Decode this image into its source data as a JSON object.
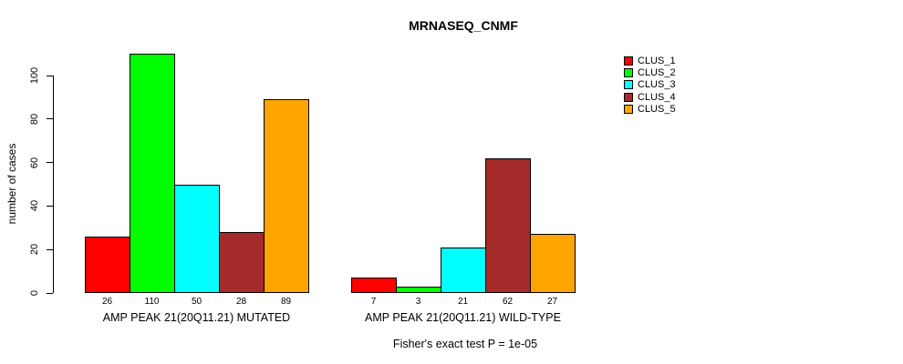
{
  "chart_data": {
    "type": "bar",
    "title": "MRNASEQ_CNMF",
    "ylabel": "number of cases",
    "xlabel": "",
    "ylim": [
      0,
      100
    ],
    "yticks": [
      0,
      20,
      40,
      60,
      80,
      100
    ],
    "grid": false,
    "legend_position": "right",
    "legend": [
      {
        "label": "CLUS_1",
        "color": "#FF0000"
      },
      {
        "label": "CLUS_2",
        "color": "#00FF00"
      },
      {
        "label": "CLUS_3",
        "color": "#00FFFF"
      },
      {
        "label": "CLUS_4",
        "color": "#A52A2A"
      },
      {
        "label": "CLUS_5",
        "color": "#FFA500"
      }
    ],
    "groups": [
      {
        "label": "AMP PEAK 21(20Q11.21) MUTATED",
        "categories": [
          "CLUS_1",
          "CLUS_2",
          "CLUS_3",
          "CLUS_4",
          "CLUS_5"
        ],
        "values": [
          26,
          110,
          50,
          28,
          89
        ]
      },
      {
        "label": "AMP PEAK 21(20Q11.21) WILD-TYPE",
        "categories": [
          "CLUS_1",
          "CLUS_2",
          "CLUS_3",
          "CLUS_4",
          "CLUS_5"
        ],
        "values": [
          7,
          3,
          21,
          62,
          27
        ]
      }
    ],
    "annotation": "Fisher's exact test P = 1e-05"
  }
}
